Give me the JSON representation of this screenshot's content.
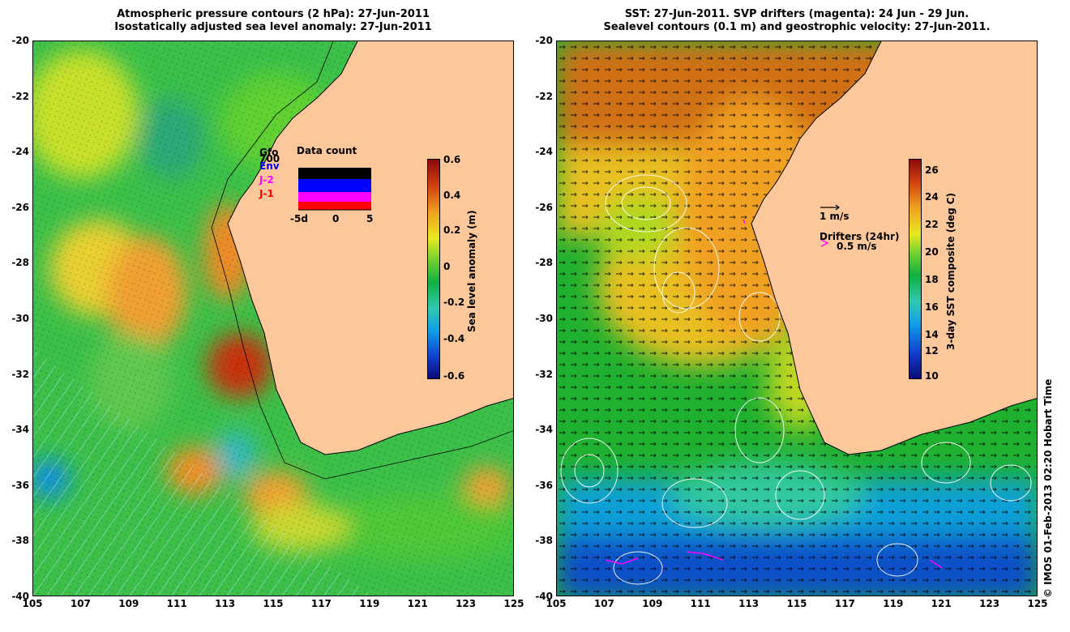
{
  "left_panel": {
    "title_line1": "Atmospheric pressure contours (2 hPa): 27-Jun-2011",
    "title_line2": "Isostatically adjusted sea level anomaly: 27-Jun-2011",
    "colorbar_label": "Sea level anomaly (m)",
    "colorbar_ticks": [
      "0.6",
      "0.4",
      "0.2",
      "0",
      "-0.2",
      "-0.4",
      "-0.6"
    ],
    "data_count": {
      "title": "Data count",
      "sources": [
        {
          "label": "Gfo",
          "color": "#000000"
        },
        {
          "label": "700",
          "color": "#000000"
        },
        {
          "label": "Env",
          "color": "#0000ff"
        },
        {
          "label": "J-2",
          "color": "#ff00ff"
        },
        {
          "label": "J-1",
          "color": "#ff0000"
        }
      ],
      "x_ticks": [
        "-5d",
        "0",
        "5"
      ]
    }
  },
  "right_panel": {
    "title_line1": "SST: 27-Jun-2011. SVP drifters (magenta): 24 Jun - 29 Jun.",
    "title_line2": "Sealevel contours (0.1 m) and geostrophic velocity: 27-Jun-2011.",
    "colorbar_label": "3-day SST composite (deg C)",
    "colorbar_ticks": [
      "26",
      "24",
      "22",
      "20",
      "18",
      "16",
      "14",
      "12",
      "10"
    ],
    "velocity_legend": "1 m/s",
    "drifters_legend_title": "Drifters (24hr)",
    "drifters_legend_value": "0.5 m/s",
    "drifter_color": "#ff00ff"
  },
  "y_ticks": [
    "-20",
    "-22",
    "-24",
    "-26",
    "-28",
    "-30",
    "-32",
    "-34",
    "-36",
    "-38",
    "-40"
  ],
  "x_ticks": [
    "105",
    "107",
    "109",
    "111",
    "113",
    "115",
    "117",
    "119",
    "121",
    "123",
    "125"
  ],
  "land_color": "#fcc89b",
  "credit": "© IMOS 01-Feb-2013 02:20 Hobart Time"
}
